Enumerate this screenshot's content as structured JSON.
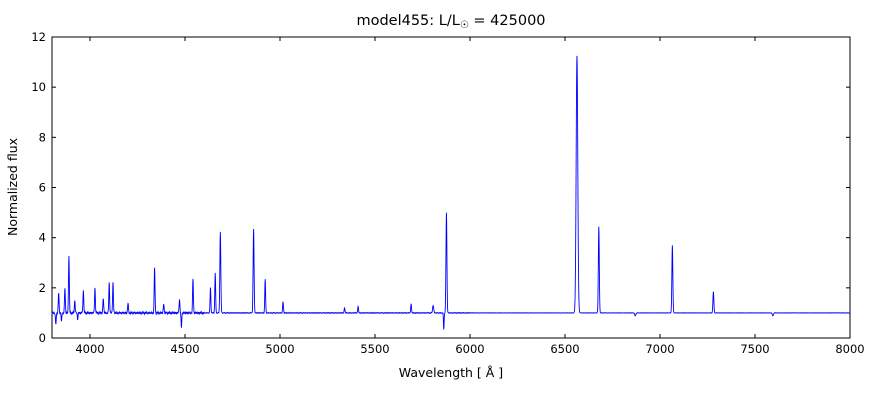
{
  "chart_data": {
    "type": "line",
    "title": "model455: L/L☉ = 425000",
    "title_prefix": "model455: L/L",
    "title_sub": "☉",
    "title_suffix": " = 425000",
    "xlabel": "Wavelength [ Å ]",
    "ylabel": "Normalized flux",
    "xlim": [
      3800,
      8000
    ],
    "ylim": [
      0,
      12
    ],
    "x_ticks": [
      4000,
      4500,
      5000,
      5500,
      6000,
      6500,
      7000,
      7500,
      8000
    ],
    "y_ticks": [
      0,
      2,
      4,
      6,
      8,
      10,
      12
    ],
    "line_color": "#0000ff",
    "frame_color": "#000000",
    "baseline": 1.0,
    "sample_step": 1,
    "noise_segments": [
      {
        "upto": 4600,
        "amp": 0.05
      },
      {
        "upto": 6000,
        "amp": 0.022
      },
      {
        "upto": 8000,
        "amp": 0.012
      }
    ],
    "emission_lines": [
      {
        "center": 3835,
        "peak": 0.8,
        "sigma": 3
      },
      {
        "center": 3868,
        "peak": 1.0,
        "sigma": 3
      },
      {
        "center": 3889,
        "peak": 2.3,
        "sigma": 3
      },
      {
        "center": 3920,
        "peak": 0.5,
        "sigma": 3
      },
      {
        "center": 3965,
        "peak": 0.9,
        "sigma": 3
      },
      {
        "center": 4026,
        "peak": 1.0,
        "sigma": 3
      },
      {
        "center": 4070,
        "peak": 0.6,
        "sigma": 3
      },
      {
        "center": 4101,
        "peak": 1.2,
        "sigma": 3
      },
      {
        "center": 4121,
        "peak": 1.2,
        "sigma": 3
      },
      {
        "center": 4200,
        "peak": 0.4,
        "sigma": 3
      },
      {
        "center": 4340,
        "peak": 1.8,
        "sigma": 3
      },
      {
        "center": 4388,
        "peak": 0.35,
        "sigma": 3
      },
      {
        "center": 4471,
        "peak": 0.55,
        "sigma": 3
      },
      {
        "center": 4542,
        "peak": 1.35,
        "sigma": 3
      },
      {
        "center": 4634,
        "peak": 1.0,
        "sigma": 3
      },
      {
        "center": 4659,
        "peak": 1.6,
        "sigma": 3
      },
      {
        "center": 4686,
        "peak": 3.25,
        "sigma": 3.5
      },
      {
        "center": 4861,
        "peak": 3.35,
        "sigma": 3.5
      },
      {
        "center": 4922,
        "peak": 1.35,
        "sigma": 3
      },
      {
        "center": 5016,
        "peak": 0.45,
        "sigma": 3
      },
      {
        "center": 5340,
        "peak": 0.2,
        "sigma": 3
      },
      {
        "center": 5411,
        "peak": 0.25,
        "sigma": 3
      },
      {
        "center": 5690,
        "peak": 0.35,
        "sigma": 3
      },
      {
        "center": 5806,
        "peak": 0.3,
        "sigma": 4
      },
      {
        "center": 5876,
        "peak": 4.0,
        "sigma": 3.5
      },
      {
        "center": 6563,
        "peak": 10.25,
        "sigma": 6
      },
      {
        "center": 6678,
        "peak": 3.45,
        "sigma": 3.5
      },
      {
        "center": 7065,
        "peak": 2.7,
        "sigma": 3.5
      },
      {
        "center": 7281,
        "peak": 0.85,
        "sigma": 3.5
      }
    ],
    "absorption_lines": [
      {
        "center": 3820,
        "depth": 0.45,
        "sigma": 3
      },
      {
        "center": 3850,
        "depth": 0.35,
        "sigma": 2.5
      },
      {
        "center": 3935,
        "depth": 0.25,
        "sigma": 2.5
      },
      {
        "center": 4481,
        "depth": 0.6,
        "sigma": 2.5
      },
      {
        "center": 5862,
        "depth": 0.65,
        "sigma": 2.5
      },
      {
        "center": 6870,
        "depth": 0.12,
        "sigma": 4
      },
      {
        "center": 7594,
        "depth": 0.12,
        "sigma": 4
      }
    ],
    "legend": "none",
    "grid": false
  }
}
